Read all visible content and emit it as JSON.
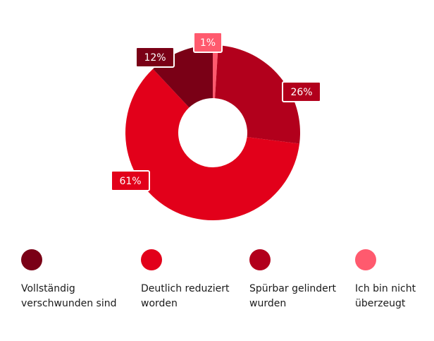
{
  "colors": {
    "vollstaendig": "#7a0016",
    "deutlich": "#e2001a",
    "spuerbar": "#b2001c",
    "ueberzeugt": "#ff5a6e"
  },
  "chart_data": {
    "type": "pie",
    "series": [
      {
        "name": "Vollständig verschwunden sind",
        "value": 12,
        "label": "12%",
        "color": "#7a0016"
      },
      {
        "name": "Deutlich reduziert worden",
        "value": 61,
        "label": "61%",
        "color": "#e2001a"
      },
      {
        "name": "Spürbar gelindert wurden",
        "value": 26,
        "label": "26%",
        "color": "#b2001c"
      },
      {
        "name": "Ich bin nicht überzeugt",
        "value": 1,
        "label": "1%",
        "color": "#ff5a6e"
      }
    ],
    "slice_order_clockwise_from_top": [
      "Ich bin nicht überzeugt",
      "Spürbar gelindert wurden",
      "Deutlich reduziert worden",
      "Vollständig verschwunden sind"
    ],
    "legend_position": "bottom"
  },
  "legend": [
    {
      "label": "Vollständig verschwunden sind",
      "color": "#7a0016"
    },
    {
      "label": "Deutlich reduziert worden",
      "color": "#e2001a"
    },
    {
      "label": "Spürbar gelindert wurden",
      "color": "#b2001c"
    },
    {
      "label": "Ich bin nicht überzeugt",
      "color": "#ff5a6e"
    }
  ]
}
